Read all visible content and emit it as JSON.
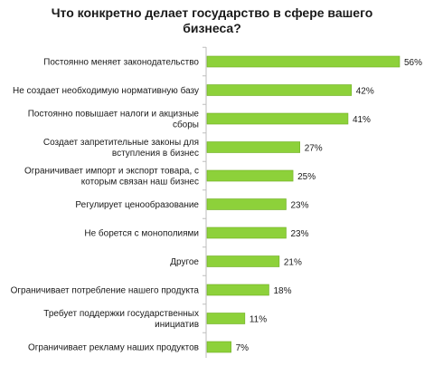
{
  "chart_data": {
    "type": "bar",
    "orientation": "horizontal",
    "title_lines": [
      "Что конкретно делает государство в сфере вашего",
      "бизнеса?"
    ],
    "categories": [
      [
        "Постоянно меняет законодательство"
      ],
      [
        "Не создает необходимую нормативную  базу"
      ],
      [
        "Постоянно повышает налоги и акцизные",
        "сборы"
      ],
      [
        "Создает запретительные законы для",
        "вступления в бизнес"
      ],
      [
        "Ограничивает импорт и экспорт товара, с",
        "которым  связан наш бизнес"
      ],
      [
        "Регулирует ценообразование"
      ],
      [
        "Не борется с монополиями"
      ],
      [
        "Другое"
      ],
      [
        "Ограничивает потребление нашего продукта"
      ],
      [
        "Требует поддержки государственных",
        "инициатив"
      ],
      [
        "Ограничивает рекламу наших продуктов"
      ]
    ],
    "values": [
      56,
      42,
      41,
      27,
      25,
      23,
      23,
      21,
      18,
      11,
      7
    ],
    "value_labels": [
      "56%",
      "42%",
      "41%",
      "27%",
      "25%",
      "23%",
      "23%",
      "21%",
      "18%",
      "11%",
      "7%"
    ],
    "xlim": [
      0,
      60
    ],
    "grid": false,
    "legend": "none",
    "bar_color": "#8dd13a",
    "bar_border_color": "#6fae22"
  }
}
